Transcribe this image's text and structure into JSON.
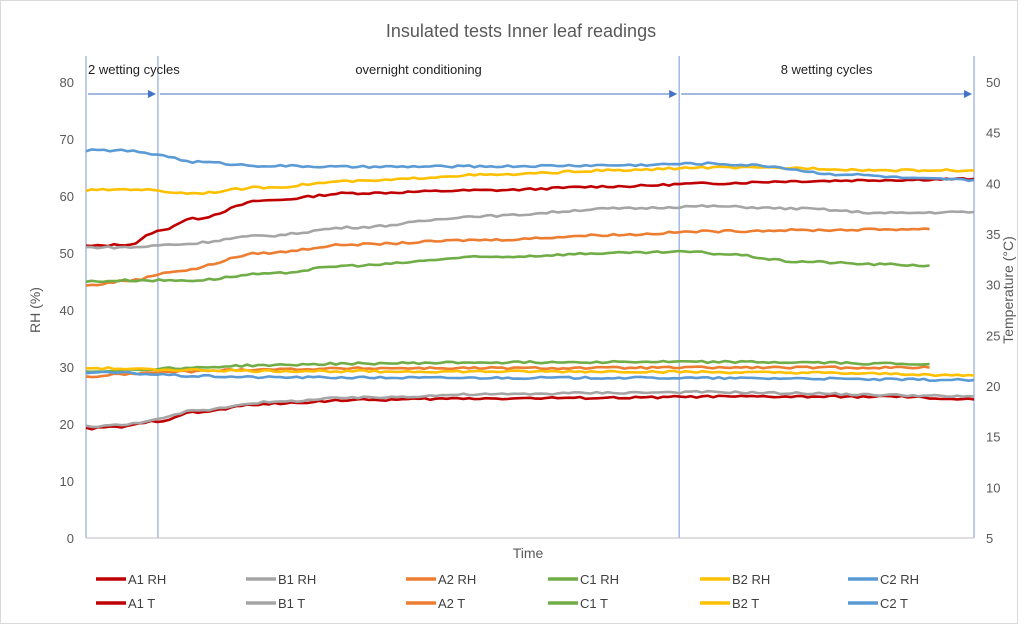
{
  "chart_data": {
    "type": "line",
    "title": "Insulated tests Inner leaf readings",
    "xlabel": "Time",
    "ylabel": "RH (%)",
    "y2label": "Temperature (°C)",
    "ylim": [
      0,
      80
    ],
    "y2lim": [
      5,
      50
    ],
    "y_ticks": [
      0,
      10,
      20,
      30,
      40,
      50,
      60,
      70,
      80
    ],
    "y2_ticks": [
      5,
      10,
      15,
      20,
      25,
      30,
      35,
      40,
      45,
      50
    ],
    "grid": false,
    "legend_position": "bottom",
    "x_domain": [
      0,
      1
    ],
    "phases": [
      {
        "label": "2 wetting cycles",
        "start": 0.0,
        "end": 0.081
      },
      {
        "label": "overnight conditioning",
        "start": 0.081,
        "end": 0.668
      },
      {
        "label": "8 wetting cycles",
        "start": 0.668,
        "end": 1.0
      }
    ],
    "series": [
      {
        "name": "A1 RH",
        "axis": "left",
        "color": "#c00000",
        "x": [
          0,
          0.05,
          0.08,
          0.12,
          0.2,
          0.3,
          0.45,
          0.6,
          0.7,
          0.8,
          0.9,
          1.0
        ],
        "y": [
          51.2,
          51.5,
          53.8,
          56.0,
          59.2,
          60.5,
          61.0,
          61.7,
          62.2,
          62.6,
          62.8,
          63.0
        ]
      },
      {
        "name": "B1 RH",
        "axis": "left",
        "color": "#a5a5a5",
        "x": [
          0,
          0.05,
          0.1,
          0.2,
          0.3,
          0.45,
          0.6,
          0.7,
          0.8,
          0.9,
          1.0
        ],
        "y": [
          51.0,
          51.0,
          51.5,
          53.0,
          54.5,
          56.5,
          57.8,
          58.2,
          57.8,
          57.0,
          57.2
        ]
      },
      {
        "name": "A2 RH",
        "axis": "left",
        "color": "#ed7d31",
        "x": [
          0,
          0.05,
          0.1,
          0.2,
          0.3,
          0.45,
          0.6,
          0.7,
          0.8,
          0.95
        ],
        "y": [
          44.3,
          45.2,
          46.8,
          50.0,
          51.5,
          52.3,
          53.2,
          53.8,
          54.0,
          54.2
        ]
      },
      {
        "name": "C1 RH",
        "axis": "left",
        "color": "#70ad47",
        "x": [
          0,
          0.05,
          0.12,
          0.2,
          0.3,
          0.45,
          0.6,
          0.68,
          0.72,
          0.8,
          0.9,
          0.95
        ],
        "y": [
          45.0,
          45.2,
          45.2,
          46.3,
          47.8,
          49.3,
          50.0,
          50.2,
          49.8,
          48.5,
          48.0,
          47.8
        ]
      },
      {
        "name": "B2 RH",
        "axis": "left",
        "color": "#ffc000",
        "x": [
          0,
          0.05,
          0.12,
          0.2,
          0.3,
          0.45,
          0.6,
          0.7,
          0.8,
          0.9,
          1.0
        ],
        "y": [
          61.0,
          61.2,
          60.5,
          61.5,
          62.6,
          63.7,
          64.5,
          65.0,
          64.9,
          64.5,
          64.5
        ]
      },
      {
        "name": "C2 RH",
        "axis": "left",
        "color": "#5b9bd5",
        "x": [
          0,
          0.04,
          0.08,
          0.12,
          0.2,
          0.3,
          0.45,
          0.6,
          0.7,
          0.75,
          0.85,
          0.95,
          1.0
        ],
        "y": [
          68.0,
          68.0,
          67.3,
          66.0,
          65.3,
          65.1,
          65.2,
          65.4,
          65.7,
          65.4,
          63.8,
          63.0,
          62.8
        ]
      },
      {
        "name": "A1 T",
        "axis": "left",
        "color": "#c00000",
        "x": [
          0,
          0.04,
          0.08,
          0.12,
          0.2,
          0.3,
          0.45,
          0.6,
          0.7,
          0.8,
          0.9,
          1.0
        ],
        "y": [
          19.2,
          19.5,
          20.5,
          22.0,
          23.5,
          24.2,
          24.5,
          24.6,
          24.8,
          24.8,
          24.8,
          24.3
        ]
      },
      {
        "name": "B1 T",
        "axis": "left",
        "color": "#a5a5a5",
        "x": [
          0,
          0.04,
          0.08,
          0.12,
          0.2,
          0.3,
          0.45,
          0.6,
          0.7,
          0.8,
          0.9,
          1.0
        ],
        "y": [
          19.6,
          19.8,
          20.8,
          22.3,
          23.8,
          24.6,
          25.2,
          25.5,
          25.6,
          25.4,
          25.1,
          24.8
        ]
      },
      {
        "name": "A2 T",
        "axis": "left",
        "color": "#ed7d31",
        "x": [
          0,
          0.05,
          0.1,
          0.2,
          0.35,
          0.5,
          0.7,
          0.85,
          0.95
        ],
        "y": [
          28.3,
          28.8,
          29.2,
          29.6,
          29.8,
          29.8,
          29.9,
          29.9,
          29.9
        ]
      },
      {
        "name": "C1 T",
        "axis": "left",
        "color": "#70ad47",
        "x": [
          0,
          0.05,
          0.1,
          0.2,
          0.3,
          0.45,
          0.6,
          0.7,
          0.8,
          0.9,
          0.95
        ],
        "y": [
          29.2,
          29.5,
          29.8,
          30.3,
          30.6,
          30.8,
          30.9,
          30.9,
          30.8,
          30.6,
          30.5
        ]
      },
      {
        "name": "B2 T",
        "axis": "left",
        "color": "#ffc000",
        "x": [
          0,
          0.1,
          0.2,
          0.4,
          0.6,
          0.8,
          0.9,
          1.0
        ],
        "y": [
          29.8,
          29.5,
          29.3,
          29.2,
          29.2,
          29.0,
          28.8,
          28.5
        ]
      },
      {
        "name": "C2 T",
        "axis": "left",
        "color": "#5b9bd5",
        "x": [
          0,
          0.04,
          0.08,
          0.12,
          0.2,
          0.4,
          0.6,
          0.8,
          0.9,
          1.0
        ],
        "y": [
          29.0,
          29.0,
          28.7,
          28.4,
          28.2,
          28.1,
          28.1,
          28.0,
          27.8,
          27.7
        ]
      }
    ]
  }
}
